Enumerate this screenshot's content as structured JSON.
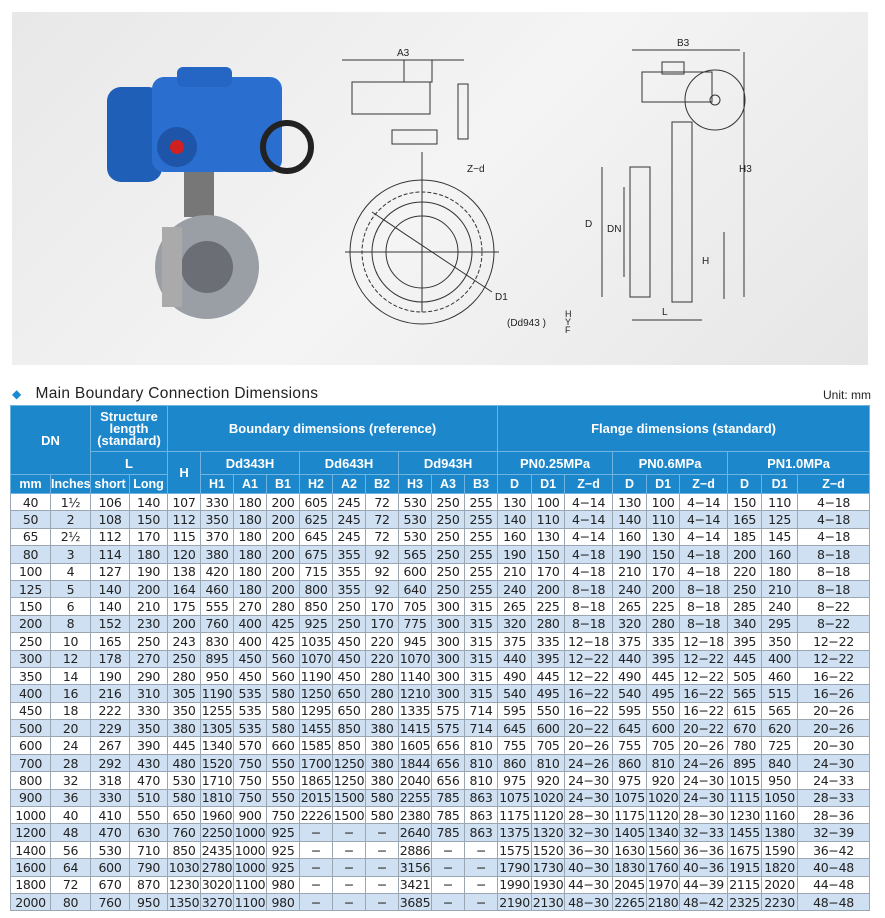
{
  "section_title": "Main Boundary Connection Dimensions",
  "unit": "Unit: mm",
  "drawing_labels": {
    "a3": "A3",
    "zd": "Z−d",
    "d1": "D1",
    "model": "(Dd943 )",
    "hyf": [
      "H",
      "Y",
      "F"
    ],
    "b3": "B3",
    "h3": "H3",
    "d": "D",
    "dn": "DN",
    "h": "H",
    "l": "L"
  },
  "headers": {
    "dn": "DN",
    "structure": "Structure length (standard)",
    "boundary": "Boundary dimensions (reference)",
    "flange": "Flange dimensions (standard)",
    "l": "L",
    "h": "H",
    "dd343h": "Dd343H",
    "dd643h": "Dd643H",
    "dd943h": "Dd943H",
    "pn025": "PN0.25MPa",
    "pn06": "PN0.6MPa",
    "pn10": "PN1.0MPa",
    "cols": [
      "mm",
      "Inches",
      "short",
      "Long",
      "H1",
      "A1",
      "B1",
      "H2",
      "A2",
      "B2",
      "H3",
      "A3",
      "B3",
      "D",
      "D1",
      "Z−d",
      "D",
      "D1",
      "Z−d",
      "D",
      "D1",
      "Z−d"
    ]
  },
  "rows": [
    [
      "40",
      "1½",
      "106",
      "140",
      "107",
      "330",
      "180",
      "200",
      "605",
      "245",
      "72",
      "530",
      "250",
      "255",
      "130",
      "100",
      "4−14",
      "130",
      "100",
      "4−14",
      "150",
      "110",
      "4−18"
    ],
    [
      "50",
      "2",
      "108",
      "150",
      "112",
      "350",
      "180",
      "200",
      "625",
      "245",
      "72",
      "530",
      "250",
      "255",
      "140",
      "110",
      "4−14",
      "140",
      "110",
      "4−14",
      "165",
      "125",
      "4−18"
    ],
    [
      "65",
      "2½",
      "112",
      "170",
      "115",
      "370",
      "180",
      "200",
      "645",
      "245",
      "72",
      "530",
      "250",
      "255",
      "160",
      "130",
      "4−14",
      "160",
      "130",
      "4−14",
      "185",
      "145",
      "4−18"
    ],
    [
      "80",
      "3",
      "114",
      "180",
      "120",
      "380",
      "180",
      "200",
      "675",
      "355",
      "92",
      "565",
      "250",
      "255",
      "190",
      "150",
      "4−18",
      "190",
      "150",
      "4−18",
      "200",
      "160",
      "8−18"
    ],
    [
      "100",
      "4",
      "127",
      "190",
      "138",
      "420",
      "180",
      "200",
      "715",
      "355",
      "92",
      "600",
      "250",
      "255",
      "210",
      "170",
      "4−18",
      "210",
      "170",
      "4−18",
      "220",
      "180",
      "8−18"
    ],
    [
      "125",
      "5",
      "140",
      "200",
      "164",
      "460",
      "180",
      "200",
      "800",
      "355",
      "92",
      "640",
      "250",
      "255",
      "240",
      "200",
      "8−18",
      "240",
      "200",
      "8−18",
      "250",
      "210",
      "8−18"
    ],
    [
      "150",
      "6",
      "140",
      "210",
      "175",
      "555",
      "270",
      "280",
      "850",
      "250",
      "170",
      "705",
      "300",
      "315",
      "265",
      "225",
      "8−18",
      "265",
      "225",
      "8−18",
      "285",
      "240",
      "8−22"
    ],
    [
      "200",
      "8",
      "152",
      "230",
      "200",
      "760",
      "400",
      "425",
      "925",
      "250",
      "170",
      "775",
      "300",
      "315",
      "320",
      "280",
      "8−18",
      "320",
      "280",
      "8−18",
      "340",
      "295",
      "8−22"
    ],
    [
      "250",
      "10",
      "165",
      "250",
      "243",
      "830",
      "400",
      "425",
      "1035",
      "450",
      "220",
      "945",
      "300",
      "315",
      "375",
      "335",
      "12−18",
      "375",
      "335",
      "12−18",
      "395",
      "350",
      "12−22"
    ],
    [
      "300",
      "12",
      "178",
      "270",
      "250",
      "895",
      "450",
      "560",
      "1070",
      "450",
      "220",
      "1070",
      "300",
      "315",
      "440",
      "395",
      "12−22",
      "440",
      "395",
      "12−22",
      "445",
      "400",
      "12−22"
    ],
    [
      "350",
      "14",
      "190",
      "290",
      "280",
      "950",
      "450",
      "560",
      "1190",
      "450",
      "280",
      "1140",
      "300",
      "315",
      "490",
      "445",
      "12−22",
      "490",
      "445",
      "12−22",
      "505",
      "460",
      "16−22"
    ],
    [
      "400",
      "16",
      "216",
      "310",
      "305",
      "1190",
      "535",
      "580",
      "1250",
      "650",
      "280",
      "1210",
      "300",
      "315",
      "540",
      "495",
      "16−22",
      "540",
      "495",
      "16−22",
      "565",
      "515",
      "16−26"
    ],
    [
      "450",
      "18",
      "222",
      "330",
      "350",
      "1255",
      "535",
      "580",
      "1295",
      "650",
      "280",
      "1335",
      "575",
      "714",
      "595",
      "550",
      "16−22",
      "595",
      "550",
      "16−22",
      "615",
      "565",
      "20−26"
    ],
    [
      "500",
      "20",
      "229",
      "350",
      "380",
      "1305",
      "535",
      "580",
      "1455",
      "850",
      "380",
      "1415",
      "575",
      "714",
      "645",
      "600",
      "20−22",
      "645",
      "600",
      "20−22",
      "670",
      "620",
      "20−26"
    ],
    [
      "600",
      "24",
      "267",
      "390",
      "445",
      "1340",
      "570",
      "660",
      "1585",
      "850",
      "380",
      "1605",
      "656",
      "810",
      "755",
      "705",
      "20−26",
      "755",
      "705",
      "20−26",
      "780",
      "725",
      "20−30"
    ],
    [
      "700",
      "28",
      "292",
      "430",
      "480",
      "1520",
      "750",
      "550",
      "1700",
      "1250",
      "380",
      "1844",
      "656",
      "810",
      "860",
      "810",
      "24−26",
      "860",
      "810",
      "24−26",
      "895",
      "840",
      "24−30"
    ],
    [
      "800",
      "32",
      "318",
      "470",
      "530",
      "1710",
      "750",
      "550",
      "1865",
      "1250",
      "380",
      "2040",
      "656",
      "810",
      "975",
      "920",
      "24−30",
      "975",
      "920",
      "24−30",
      "1015",
      "950",
      "24−33"
    ],
    [
      "900",
      "36",
      "330",
      "510",
      "580",
      "1810",
      "750",
      "550",
      "2015",
      "1500",
      "580",
      "2255",
      "785",
      "863",
      "1075",
      "1020",
      "24−30",
      "1075",
      "1020",
      "24−30",
      "1115",
      "1050",
      "28−33"
    ],
    [
      "1000",
      "40",
      "410",
      "550",
      "650",
      "1960",
      "900",
      "750",
      "2226",
      "1500",
      "580",
      "2380",
      "785",
      "863",
      "1175",
      "1120",
      "28−30",
      "1175",
      "1120",
      "28−30",
      "1230",
      "1160",
      "28−36"
    ],
    [
      "1200",
      "48",
      "470",
      "630",
      "760",
      "2250",
      "1000",
      "925",
      "−",
      "−",
      "−",
      "2640",
      "785",
      "863",
      "1375",
      "1320",
      "32−30",
      "1405",
      "1340",
      "32−33",
      "1455",
      "1380",
      "32−39"
    ],
    [
      "1400",
      "56",
      "530",
      "710",
      "850",
      "2435",
      "1000",
      "925",
      "−",
      "−",
      "−",
      "2886",
      "−",
      "−",
      "1575",
      "1520",
      "36−30",
      "1630",
      "1560",
      "36−36",
      "1675",
      "1590",
      "36−42"
    ],
    [
      "1600",
      "64",
      "600",
      "790",
      "1030",
      "2780",
      "1000",
      "925",
      "−",
      "−",
      "−",
      "3156",
      "−",
      "−",
      "1790",
      "1730",
      "40−30",
      "1830",
      "1760",
      "40−36",
      "1915",
      "1820",
      "40−48"
    ],
    [
      "1800",
      "72",
      "670",
      "870",
      "1230",
      "3020",
      "1100",
      "980",
      "−",
      "−",
      "−",
      "3421",
      "−",
      "−",
      "1990",
      "1930",
      "44−30",
      "2045",
      "1970",
      "44−39",
      "2115",
      "2020",
      "44−48"
    ],
    [
      "2000",
      "80",
      "760",
      "950",
      "1350",
      "3270",
      "1100",
      "980",
      "−",
      "−",
      "−",
      "3685",
      "−",
      "−",
      "2190",
      "2130",
      "48−30",
      "2265",
      "2180",
      "48−42",
      "2325",
      "2230",
      "48−48"
    ]
  ],
  "colors": {
    "header": "#1d87cc",
    "alt_row": "#cfe0f2",
    "actuator": "#1f5fb8"
  }
}
